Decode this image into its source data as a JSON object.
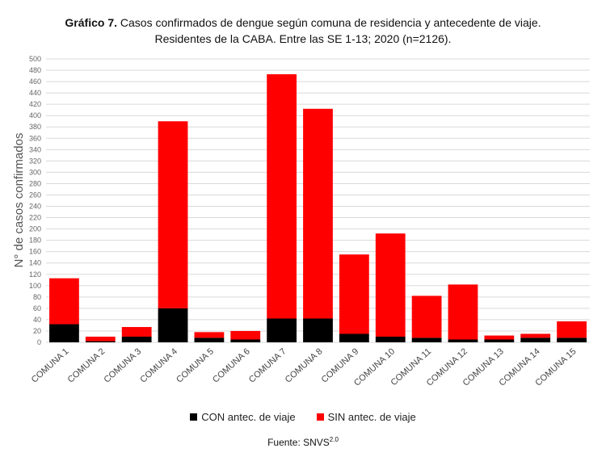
{
  "title": {
    "bold": "Gráfico 7.",
    "line1": " Casos confirmados de dengue según comuna de residencia y antecedente de viaje.",
    "line2": "Residentes de la CABA. Entre las SE 1-13; 2020 (n=2126)."
  },
  "source": {
    "label": "Fuente: SNVS",
    "superscript": "2.0"
  },
  "colors": {
    "con": "#000000",
    "sin": "#ff0000",
    "grid": "#d9d9d9"
  },
  "chart_data": {
    "type": "bar",
    "stacked": true,
    "categories": [
      "COMUNA 1",
      "COMUNA 2",
      "COMUNA 3",
      "COMUNA 4",
      "COMUNA 5",
      "COMUNA 6",
      "COMUNA 7",
      "COMUNA 8",
      "COMUNA 9",
      "COMUNA 10",
      "COMUNA 11",
      "COMUNA 12",
      "COMUNA 13",
      "COMUNA 14",
      "COMUNA 15"
    ],
    "series": [
      {
        "name": "CON antec. de viaje",
        "values": [
          32,
          2,
          10,
          60,
          8,
          5,
          42,
          42,
          15,
          10,
          8,
          5,
          5,
          8,
          8
        ]
      },
      {
        "name": "SIN antec. de viaje",
        "values": [
          81,
          8,
          17,
          330,
          10,
          15,
          431,
          370,
          140,
          182,
          74,
          97,
          7,
          7,
          29
        ]
      }
    ],
    "ylabel": "N° de casos confirmados",
    "xlabel": "",
    "ylim": [
      0,
      500
    ],
    "yticks": [
      0,
      20,
      40,
      60,
      80,
      100,
      120,
      140,
      160,
      180,
      200,
      220,
      240,
      260,
      280,
      300,
      320,
      340,
      360,
      380,
      400,
      420,
      440,
      460,
      480,
      500
    ],
    "grid": true,
    "legend": "bottom"
  }
}
